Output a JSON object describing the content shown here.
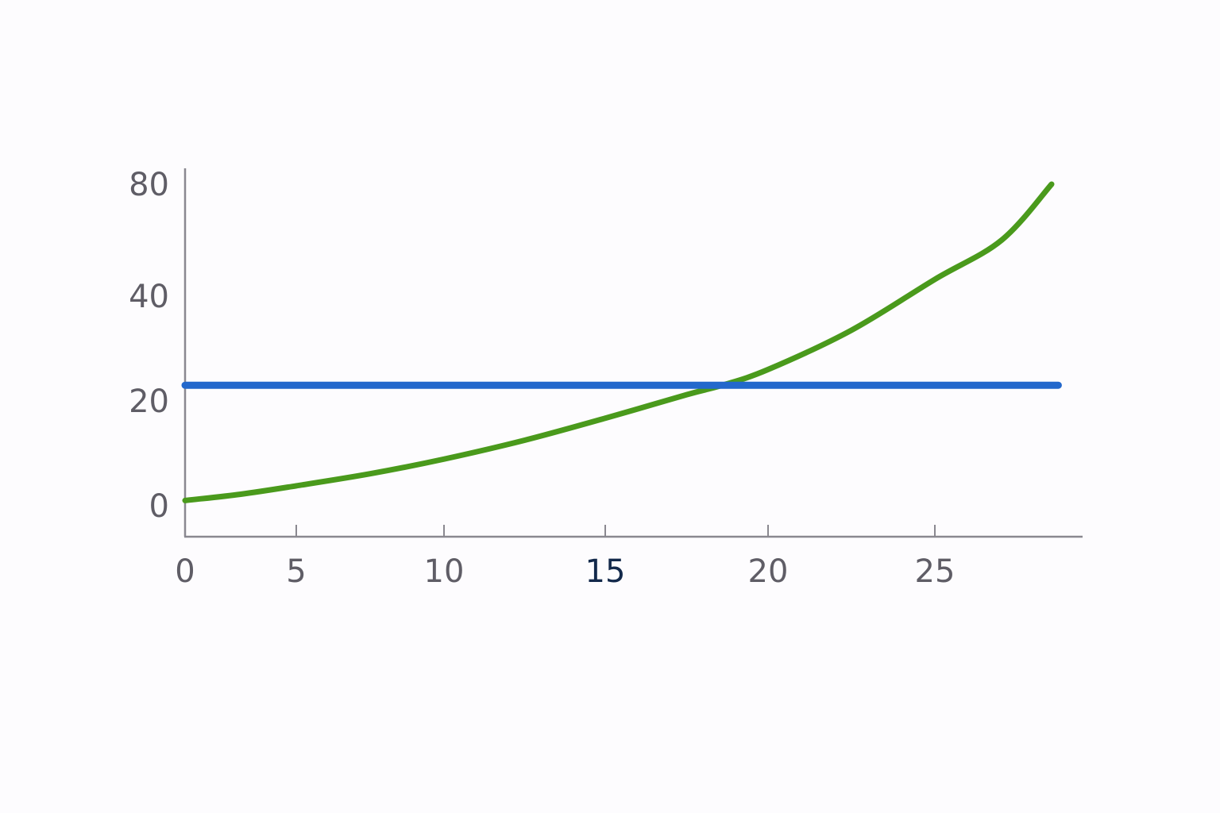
{
  "chart_data": {
    "type": "line",
    "title": "",
    "xlabel": "",
    "ylabel": "",
    "x_ticks": [
      0,
      5,
      10,
      15,
      20,
      25
    ],
    "y_ticks": [
      0,
      20,
      40,
      80
    ],
    "highlighted_x_tick": 15,
    "xlim": [
      0,
      28.7
    ],
    "ylim": [
      0,
      80
    ],
    "grid": false,
    "axis_color": "#8a8890",
    "series": [
      {
        "color": "#4a9a1c",
        "x": [
          0,
          2.5,
          5,
          7.5,
          10,
          12.5,
          15,
          17.5,
          18.6,
          20,
          22.5,
          25,
          27,
          28.5
        ],
        "y": [
          1,
          2.2,
          3.8,
          6.1,
          8.9,
          12.5,
          16.7,
          21.2,
          23,
          26,
          33.5,
          46,
          60,
          80
        ]
      },
      {
        "color": "#2368cc",
        "x": [
          0,
          28.7
        ],
        "y": [
          23,
          23
        ]
      }
    ]
  }
}
